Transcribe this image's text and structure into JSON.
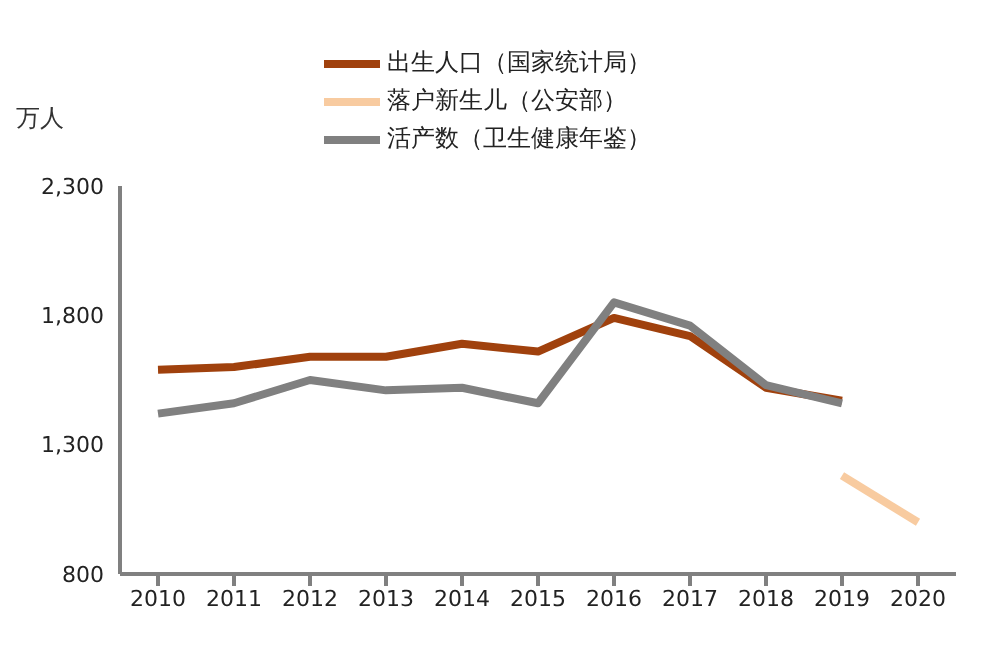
{
  "chart_data": {
    "type": "line",
    "ylabel": "万人",
    "categories": [
      "2010",
      "2011",
      "2012",
      "2013",
      "2014",
      "2015",
      "2016",
      "2017",
      "2018",
      "2019",
      "2020"
    ],
    "series": [
      {
        "name": "出生人口（国家统计局）",
        "color": "#a0410d",
        "values": [
          1590,
          1600,
          1640,
          1640,
          1690,
          1660,
          1790,
          1720,
          1520,
          1470,
          null
        ]
      },
      {
        "name": "落户新生儿（公安部）",
        "color": "#f8cba0",
        "values": [
          null,
          null,
          null,
          null,
          null,
          null,
          null,
          null,
          null,
          1180,
          1000
        ]
      },
      {
        "name": "活产数（卫生健康年鉴）",
        "color": "#808080",
        "values": [
          1420,
          1460,
          1550,
          1510,
          1520,
          1460,
          1850,
          1760,
          1530,
          1460,
          null
        ]
      }
    ],
    "ylim": [
      800,
      2300
    ],
    "yticks": [
      {
        "value": 800,
        "label": "800"
      },
      {
        "value": 1300,
        "label": "1,300"
      },
      {
        "value": 1800,
        "label": "1,800"
      },
      {
        "value": 2300,
        "label": "2,300"
      }
    ],
    "grid": false,
    "legend": "top",
    "marker": "none",
    "line_style": "solid"
  }
}
